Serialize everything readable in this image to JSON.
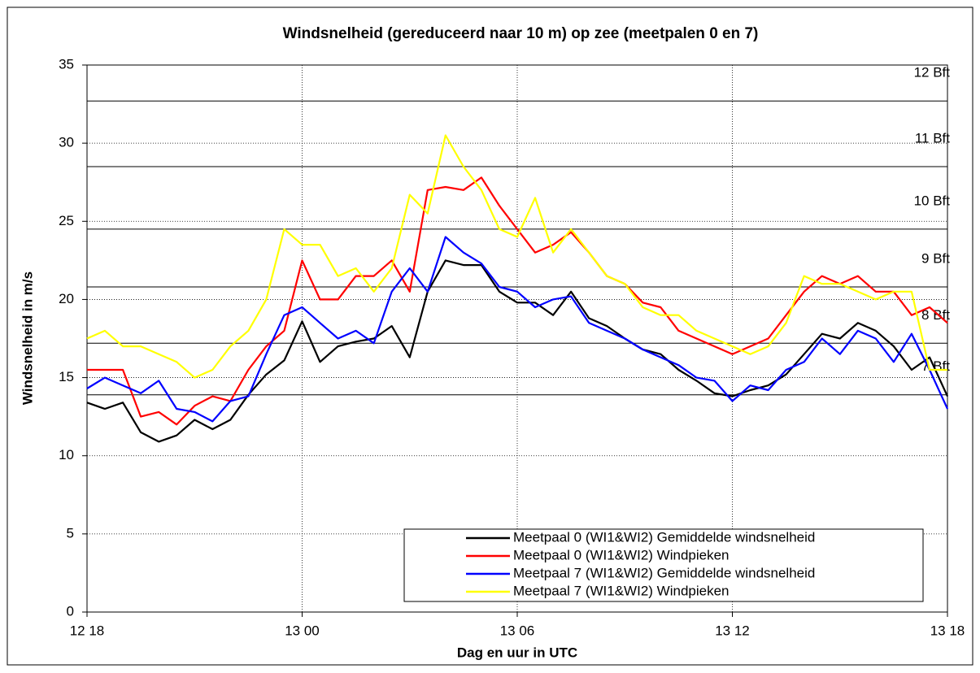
{
  "chart_data": {
    "type": "line",
    "title": "Windsnelheid (gereduceerd naar 10 m) op zee (meetpalen 0 en 7)",
    "x_label": "Dag en uur in UTC",
    "y_label": "Windsnelheid in m/s",
    "x": [
      0,
      0.5,
      1,
      1.5,
      2,
      2.5,
      3,
      3.5,
      4,
      4.5,
      5,
      5.5,
      6,
      6.5,
      7,
      7.5,
      8,
      8.5,
      9,
      9.5,
      10,
      10.5,
      11,
      11.5,
      12,
      12.5,
      13,
      13.5,
      14,
      14.5,
      15,
      15.5,
      16,
      16.5,
      17,
      17.5,
      18,
      18.5,
      19,
      19.5,
      20,
      20.5,
      21,
      21.5,
      22,
      22.5,
      23,
      23.5,
      24
    ],
    "series": [
      {
        "name": "Meetpaal 0 (WI1&WI2) Gemiddelde windsnelheid",
        "color": "#000000",
        "values": [
          13.4,
          13,
          13.4,
          11.5,
          10.9,
          11.3,
          12.3,
          11.7,
          12.3,
          13.9,
          15.2,
          16.1,
          18.6,
          16,
          17,
          17.3,
          17.5,
          18.3,
          16.3,
          20.5,
          22.5,
          22.2,
          22.2,
          20.5,
          19.8,
          19.8,
          19,
          20.5,
          18.8,
          18.3,
          17.5,
          16.8,
          16.5,
          15.5,
          14.8,
          14,
          13.8,
          14.2,
          14.5,
          15.2,
          16.5,
          17.8,
          17.5,
          18.5,
          18,
          17,
          15.5,
          16.3,
          13.8
        ]
      },
      {
        "name": "Meetpaal 0 (WI1&WI2) Windpieken",
        "color": "#ff0000",
        "values": [
          15.5,
          15.5,
          15.5,
          12.5,
          12.8,
          12,
          13.2,
          13.8,
          13.5,
          15.5,
          17,
          18,
          22.5,
          20,
          20,
          21.5,
          21.5,
          22.5,
          20.5,
          27,
          27.2,
          27,
          27.8,
          26,
          24.5,
          23,
          23.5,
          24.3,
          23,
          21.5,
          21,
          19.8,
          19.5,
          18,
          17.5,
          17,
          16.5,
          17,
          17.5,
          19,
          20.5,
          21.5,
          21,
          21.5,
          20.5,
          20.5,
          19,
          19.5,
          18.5
        ]
      },
      {
        "name": "Meetpaal 7 (WI1&WI2) Gemiddelde windsnelheid",
        "color": "#0000ff",
        "values": [
          14.3,
          15,
          14.5,
          14,
          14.8,
          13,
          12.8,
          12.2,
          13.5,
          13.8,
          16.5,
          19,
          19.5,
          18.5,
          17.5,
          18,
          17.2,
          20.5,
          22,
          20.5,
          24,
          23,
          22.3,
          20.8,
          20.5,
          19.5,
          20,
          20.2,
          18.5,
          18,
          17.5,
          16.8,
          16.3,
          15.8,
          15,
          14.8,
          13.5,
          14.5,
          14.2,
          15.5,
          16,
          17.5,
          16.5,
          18,
          17.5,
          16,
          17.8,
          15.5,
          13
        ]
      },
      {
        "name": "Meetpaal 7 (WI1&WI2) Windpieken",
        "color": "#ffff00",
        "values": [
          17.5,
          18,
          17,
          17,
          16.5,
          16,
          15,
          15.5,
          17,
          18,
          20,
          24.5,
          23.5,
          23.5,
          21.5,
          22,
          20.5,
          22,
          26.7,
          25.5,
          30.5,
          28.5,
          27,
          24.5,
          24,
          26.5,
          23,
          24.5,
          23,
          21.5,
          21,
          19.5,
          19,
          19,
          18,
          17.5,
          17,
          16.5,
          17,
          18.5,
          21.5,
          21,
          21,
          20.5,
          20,
          20.5,
          20.5,
          15.5,
          15.5
        ]
      }
    ],
    "xlim": [
      0,
      24
    ],
    "xticks": [
      {
        "value": 0,
        "label": "12 18"
      },
      {
        "value": 6,
        "label": "13 00"
      },
      {
        "value": 12,
        "label": "13 06"
      },
      {
        "value": 18,
        "label": "13 12"
      },
      {
        "value": 24,
        "label": "13 18"
      }
    ],
    "ylim": [
      0,
      35
    ],
    "yticks": [
      0,
      5,
      10,
      15,
      20,
      25,
      30,
      35
    ],
    "reference_lines": [
      {
        "value": 13.9,
        "label": "7 Bft"
      },
      {
        "value": 17.2,
        "label": "8 Bft"
      },
      {
        "value": 20.8,
        "label": "9 Bft"
      },
      {
        "value": 24.5,
        "label": "10 Bft"
      },
      {
        "value": 28.5,
        "label": "11 Bft"
      },
      {
        "value": 32.7,
        "label": "12 Bft"
      }
    ],
    "grid": true,
    "legend": "lower right"
  }
}
